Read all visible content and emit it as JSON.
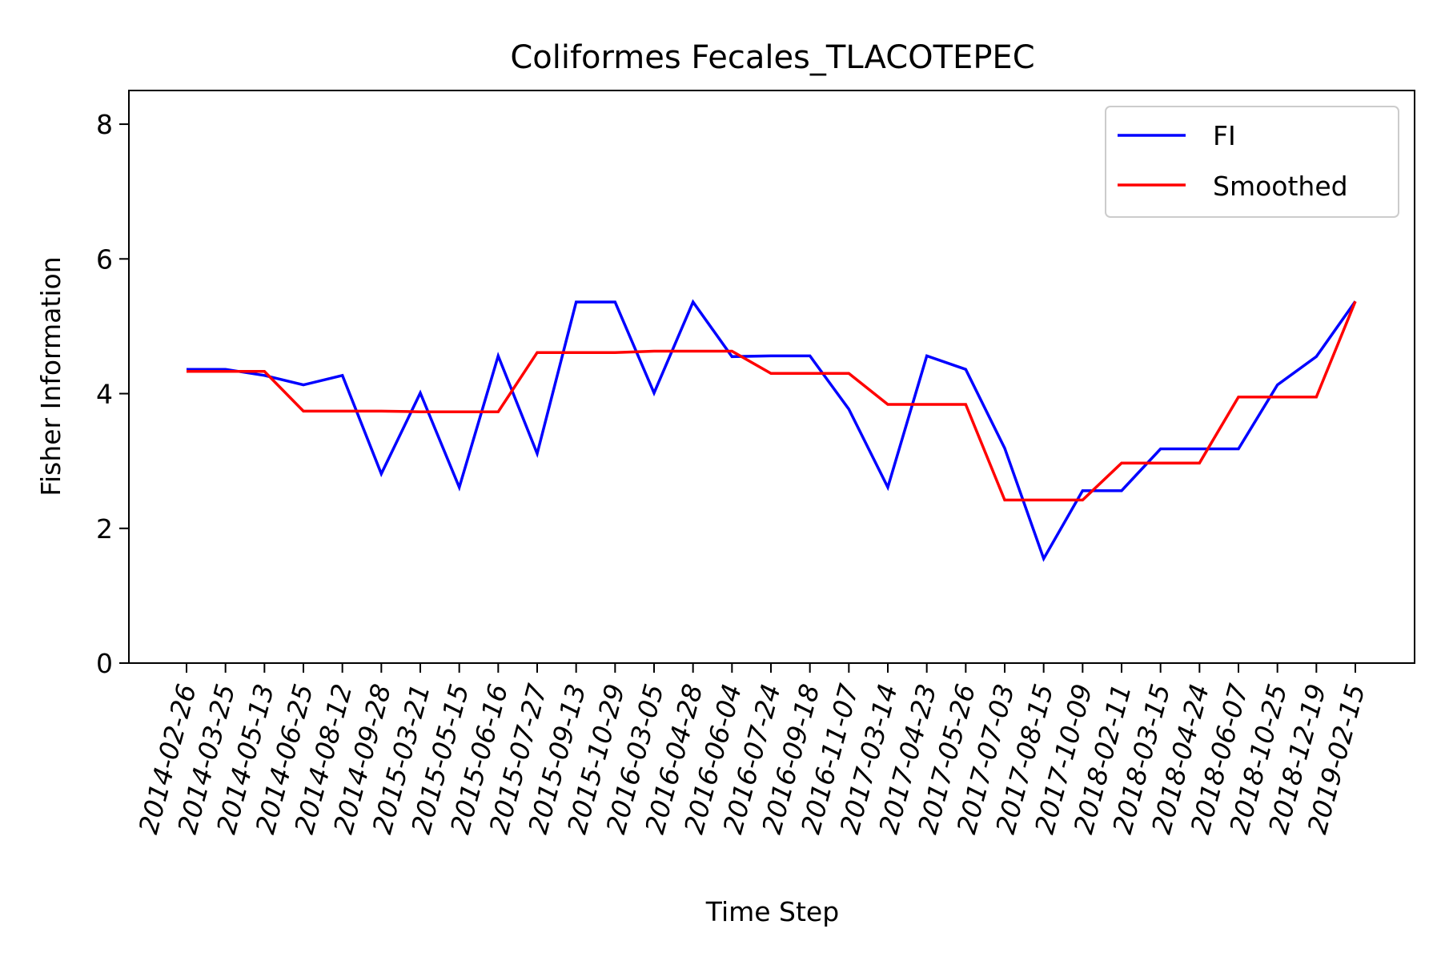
{
  "chart_data": {
    "type": "line",
    "title": "Coliformes Fecales_TLACOTEPEC",
    "xlabel": "Time Step",
    "ylabel": "Fisher Information",
    "ylim": [
      0,
      8.5
    ],
    "yticks": [
      0,
      2,
      4,
      6,
      8
    ],
    "ytick_labels": [
      "0",
      "2",
      "4",
      "6",
      "8"
    ],
    "grid": false,
    "legend_position": "top-right",
    "categories": [
      "2014-02-26",
      "2014-03-25",
      "2014-05-13",
      "2014-06-25",
      "2014-08-12",
      "2014-09-28",
      "2015-03-21",
      "2015-05-15",
      "2015-06-16",
      "2015-07-27",
      "2015-09-13",
      "2015-10-29",
      "2016-03-05",
      "2016-04-28",
      "2016-06-04",
      "2016-07-24",
      "2016-09-18",
      "2016-11-07",
      "2017-03-14",
      "2017-04-23",
      "2017-05-26",
      "2017-07-03",
      "2017-08-15",
      "2017-10-09",
      "2018-02-11",
      "2018-03-15",
      "2018-04-24",
      "2018-06-07",
      "2018-10-25",
      "2018-12-19",
      "2019-02-15"
    ],
    "series": [
      {
        "name": "FI",
        "color": "#0000ff",
        "values": [
          4.36,
          4.36,
          4.27,
          4.13,
          4.27,
          2.81,
          4.01,
          2.61,
          4.56,
          3.11,
          5.36,
          5.36,
          4.01,
          5.36,
          4.55,
          4.56,
          4.56,
          3.77,
          2.61,
          4.56,
          4.36,
          3.19,
          1.55,
          2.56,
          2.56,
          3.18,
          3.18,
          3.18,
          4.13,
          4.55,
          5.37
        ]
      },
      {
        "name": "Smoothed",
        "color": "#ff0000",
        "values": [
          4.33,
          4.33,
          4.33,
          3.74,
          3.74,
          3.74,
          3.73,
          3.73,
          3.73,
          4.61,
          4.61,
          4.61,
          4.63,
          4.63,
          4.63,
          4.3,
          4.3,
          4.3,
          3.84,
          3.84,
          3.84,
          2.42,
          2.42,
          2.42,
          2.97,
          2.97,
          2.97,
          3.95,
          3.95,
          3.95,
          5.37
        ]
      }
    ]
  }
}
